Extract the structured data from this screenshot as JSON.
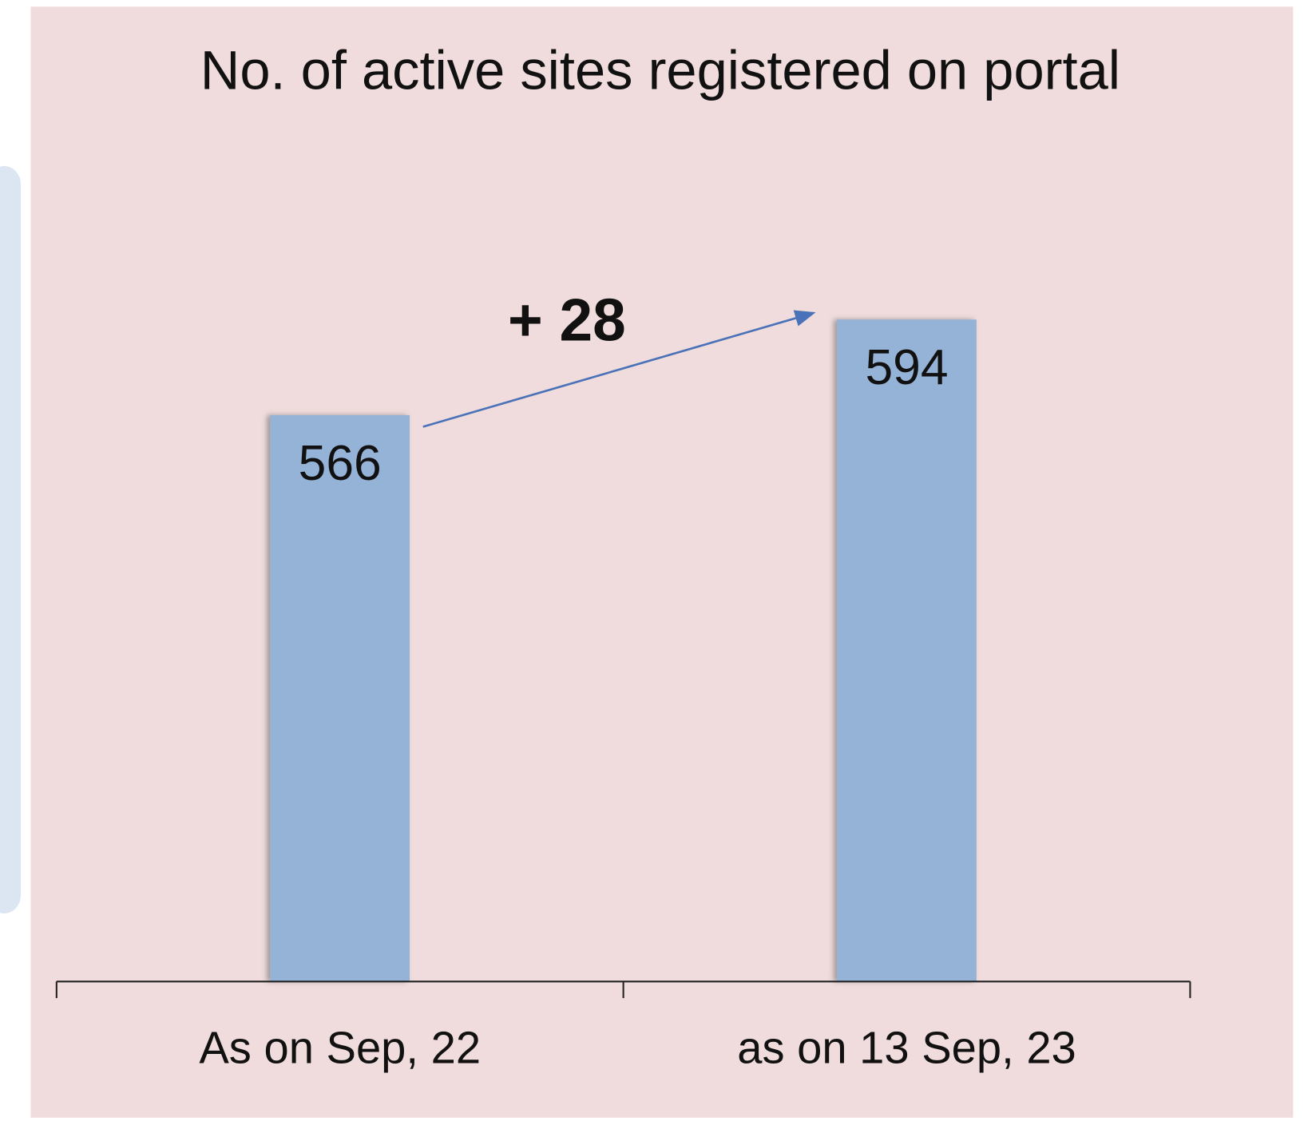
{
  "chart_data": {
    "type": "bar",
    "title": "No. of active sites registered on portal",
    "categories": [
      "As on Sep, 22",
      "as on 13 Sep, 23"
    ],
    "values": [
      566,
      594
    ],
    "color": "#95b3d7",
    "ylim": [
      400,
      620
    ],
    "annotation": "+ 28"
  }
}
